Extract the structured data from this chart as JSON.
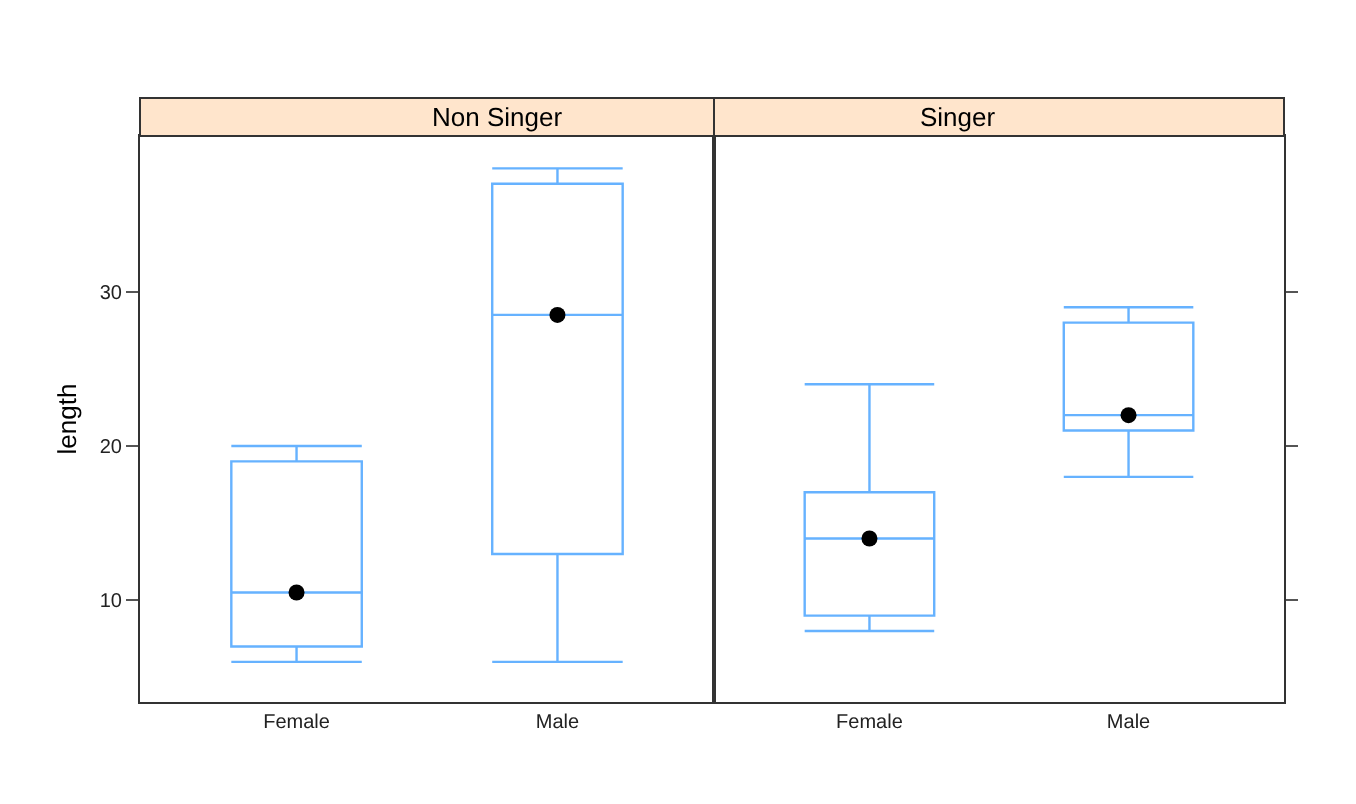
{
  "chart_data": [
    {
      "type": "box",
      "title": "Non Singer",
      "ylabel": "length",
      "categories": [
        "Female",
        "Male"
      ],
      "color": "#66b2ff",
      "ylim": [
        3.4,
        40.1
      ],
      "yticks": [
        10,
        20,
        30
      ],
      "grid": false,
      "marker": "circle",
      "boxes": [
        {
          "low": 6,
          "q1": 7,
          "median": 10.5,
          "q3": 19,
          "high": 20
        },
        {
          "low": 6,
          "q1": 13,
          "median": 28.5,
          "q3": 37,
          "high": 38
        }
      ],
      "series": [
        {
          "type": "scatter",
          "color": "#000000",
          "x": [
            "Female",
            "Male"
          ],
          "values": [
            10.5,
            28.5
          ]
        }
      ]
    },
    {
      "type": "box",
      "title": "Singer",
      "categories": [
        "Female",
        "Male"
      ],
      "color": "#66b2ff",
      "ylim": [
        3.4,
        40.1
      ],
      "yticks": [
        10,
        20,
        30
      ],
      "grid": false,
      "marker": "circle",
      "tick_labels": "x",
      "boxes": [
        {
          "low": 8,
          "q1": 9,
          "median": 14,
          "q3": 17,
          "high": 24
        },
        {
          "low": 18,
          "q1": 21,
          "median": 22,
          "q3": 28,
          "high": 29
        }
      ],
      "series": [
        {
          "type": "scatter",
          "color": "#000000",
          "x": [
            "Female",
            "Male"
          ],
          "values": [
            14,
            22
          ]
        }
      ]
    }
  ]
}
